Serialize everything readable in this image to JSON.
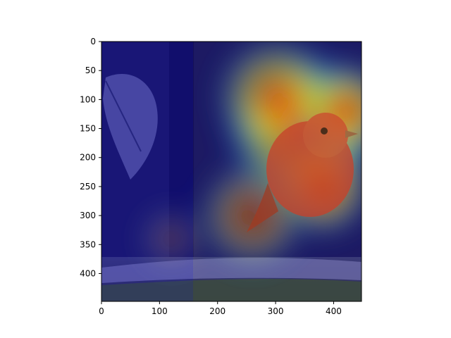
{
  "chart_data": {
    "type": "heatmap",
    "title": "",
    "xlabel": "",
    "ylabel": "",
    "xlim": [
      0,
      448
    ],
    "ylim": [
      448,
      0
    ],
    "x_ticks": [
      0,
      100,
      200,
      300,
      400
    ],
    "y_ticks": [
      0,
      50,
      100,
      150,
      200,
      250,
      300,
      350,
      400
    ],
    "colormap": "jet",
    "overlay_description_hidden": true,
    "hotspots": [
      {
        "x": 345,
        "y": 150,
        "intensity": 1.0,
        "radius": 140
      },
      {
        "x": 420,
        "y": 120,
        "intensity": 0.95,
        "radius": 90
      },
      {
        "x": 300,
        "y": 95,
        "intensity": 0.75,
        "radius": 110
      },
      {
        "x": 380,
        "y": 250,
        "intensity": 0.9,
        "radius": 90
      },
      {
        "x": 260,
        "y": 300,
        "intensity": 0.6,
        "radius": 100
      },
      {
        "x": 120,
        "y": 340,
        "intensity": 0.35,
        "radius": 60
      }
    ]
  }
}
